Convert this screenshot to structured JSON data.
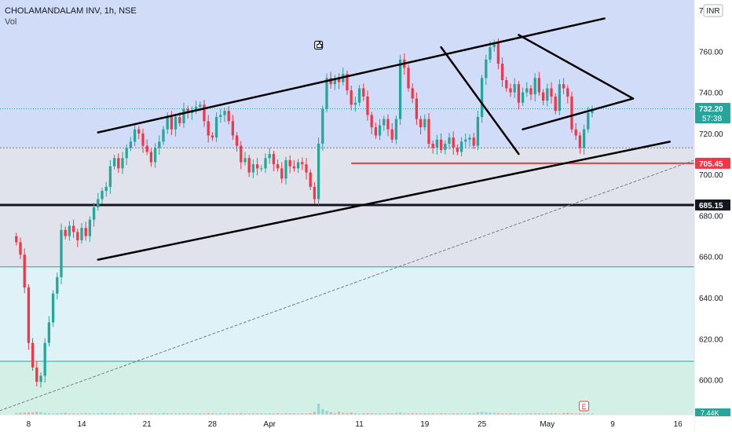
{
  "legend": {
    "symbol": "CHOLAMANDALAM INV, 1h, NSE",
    "volume_label": "Vol"
  },
  "currency_badge": "INR",
  "chart_data": {
    "type": "candlestick",
    "symbol": "CHOLAMANDALAM INV",
    "interval": "1h",
    "exchange": "NSE",
    "y_ticks": [
      600,
      620,
      640,
      660,
      680,
      700,
      720,
      740,
      760,
      780
    ],
    "y_tick_labels": [
      "600.00",
      "620.00",
      "640.00",
      "660.00",
      "680.00",
      "700.00",
      "720.00",
      "740.00",
      "760.00",
      "780.00"
    ],
    "ylim": [
      583,
      785
    ],
    "x_tick_labels": [
      "8",
      "14",
      "21",
      "28",
      "Apr",
      "11",
      "19",
      "25",
      "May",
      "9",
      "16"
    ],
    "x_tick_index": [
      3,
      16,
      32,
      48,
      62,
      84,
      100,
      114,
      130,
      146,
      162
    ],
    "xlim": [
      -4,
      166
    ],
    "price_labels": [
      {
        "value": 732.2,
        "text": "732.20",
        "sub": "57:38",
        "color": "#26a69a"
      },
      {
        "value": 705.45,
        "text": "705.45",
        "color": "#f23645"
      },
      {
        "value": 685.15,
        "text": "685.15",
        "color": "#131722"
      }
    ],
    "zones": [
      {
        "from": 655,
        "to": 713,
        "color": "#e0e3eb"
      },
      {
        "from": 713,
        "to": 785,
        "color": "#d1dcf9"
      },
      {
        "from": 609,
        "to": 655,
        "color": "#def2f8"
      },
      {
        "from": 583,
        "to": 609,
        "color": "#d3f0e6"
      }
    ],
    "horizontal_lines": [
      {
        "value": 685.15,
        "color": "#131722",
        "width": 3,
        "from": -4
      },
      {
        "value": 705.45,
        "color": "#f23645",
        "width": 2,
        "from": 82
      },
      {
        "value": 655,
        "color": "#26a69a",
        "width": 1,
        "from": -4
      },
      {
        "value": 609,
        "color": "#26a69a",
        "width": 1,
        "from": -4
      },
      {
        "value": 713,
        "color": "#787b86",
        "width": 1,
        "from": -4
      }
    ],
    "trend_lines": [
      {
        "points": [
          [
            20,
            720.5
          ],
          [
            144,
            776
          ]
        ],
        "color": "#000000",
        "width": 2.5
      },
      {
        "points": [
          [
            20,
            658.5
          ],
          [
            160,
            716
          ]
        ],
        "color": "#000000",
        "width": 2.5
      },
      {
        "points": [
          [
            104,
            762
          ],
          [
            123,
            710
          ]
        ],
        "color": "#000000",
        "width": 2.5
      },
      {
        "points": [
          [
            123,
            768
          ],
          [
            151,
            737
          ]
        ],
        "color": "#000000",
        "width": 2.5
      },
      {
        "points": [
          [
            124,
            722
          ],
          [
            151,
            737
          ]
        ],
        "color": "#000000",
        "width": 2.5
      },
      {
        "points": [
          [
            -4,
            585
          ],
          [
            166,
            707
          ]
        ],
        "color": "#787b86",
        "width": 1,
        "dash": "3,3"
      }
    ],
    "closes": [
      667,
      661,
      645,
      618,
      606,
      599,
      602,
      618,
      628,
      642,
      650,
      673,
      670,
      675,
      672,
      668,
      674,
      670,
      678,
      684,
      688,
      692,
      694,
      704,
      708,
      703,
      708,
      713,
      716,
      722,
      720,
      714,
      711,
      706,
      713,
      716,
      722,
      728,
      722,
      728,
      725,
      732,
      730,
      731,
      733,
      734,
      726,
      719,
      718,
      728,
      729,
      731,
      726,
      719,
      714,
      706,
      708,
      701,
      705,
      703,
      703,
      708,
      710,
      705,
      703,
      698,
      707,
      704,
      703,
      706,
      705,
      701,
      694,
      688,
      715,
      732,
      747,
      744,
      747,
      745,
      749,
      741,
      734,
      735,
      742,
      738,
      729,
      723,
      719,
      724,
      727,
      722,
      717,
      727,
      756,
      752,
      742,
      737,
      727,
      723,
      727,
      715,
      713,
      717,
      712,
      715,
      718,
      713,
      711,
      716,
      717,
      718,
      714,
      728,
      747,
      756,
      762,
      764,
      754,
      746,
      742,
      740,
      744,
      735,
      740,
      742,
      739,
      747,
      740,
      736,
      742,
      738,
      731,
      744,
      742,
      738,
      722,
      719,
      713,
      722,
      730,
      732
    ],
    "candle_width": 3.3,
    "up_color": "#26a69a",
    "down_color": "#f23645",
    "volume_max_value": 45,
    "volume_values": [
      4,
      5,
      6,
      7,
      6,
      9,
      8,
      5,
      3,
      2,
      3,
      4,
      5,
      3,
      2,
      2,
      3,
      4,
      3,
      2,
      3,
      4,
      3,
      3,
      4,
      2,
      3,
      2,
      3,
      4,
      3,
      2,
      2,
      3,
      3,
      2,
      4,
      3,
      2,
      3,
      2,
      3,
      3,
      2,
      3,
      3,
      2,
      4,
      3,
      2,
      3,
      2,
      3,
      2,
      2,
      4,
      3,
      2,
      3,
      2,
      3,
      2,
      3,
      2,
      3,
      2,
      4,
      3,
      3,
      2,
      3,
      2,
      4,
      9,
      45,
      21,
      14,
      8,
      4,
      10,
      5,
      4,
      6,
      3,
      2,
      3,
      4,
      3,
      2,
      3,
      2,
      3,
      3,
      5,
      6,
      3,
      2,
      3,
      3,
      2,
      3,
      2,
      3,
      2,
      3,
      3,
      2,
      3,
      2,
      3,
      2,
      3,
      3,
      8,
      9,
      7,
      6,
      5,
      4,
      3,
      2,
      3,
      3,
      2,
      2,
      3,
      3,
      4,
      3,
      2,
      3,
      3,
      3,
      2,
      4,
      5,
      3,
      2,
      3,
      2,
      3,
      2
    ],
    "volume_badge": "E",
    "last_volume_label": "7.44K"
  }
}
